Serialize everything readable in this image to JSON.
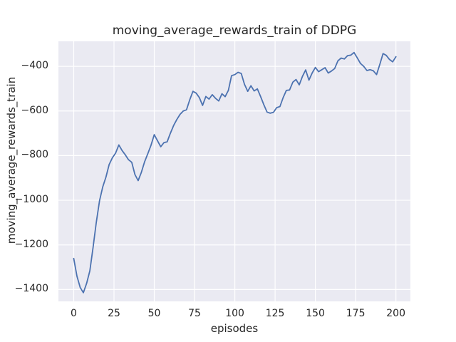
{
  "chart_data": {
    "type": "line",
    "title": "moving_average_rewards_train of DDPG",
    "xlabel": "episodes",
    "ylabel": "moving_average_rewards_train",
    "grid": true,
    "legend": "none",
    "background_color": "#eaeaf2",
    "grid_color": "#ffffff",
    "text_color": "#262626",
    "xticks": [
      0,
      25,
      50,
      75,
      100,
      125,
      150,
      175,
      200
    ],
    "yticks": [
      -400,
      -600,
      -800,
      -1000,
      -1200,
      -1400
    ],
    "xlim": [
      -9.5,
      209
    ],
    "ylim": [
      -1453,
      -288
    ],
    "series": [
      {
        "name": "moving_average_rewards_train",
        "color": "#4c72b0",
        "line_width": 1.8,
        "x": [
          0,
          2,
          4,
          6,
          8,
          10,
          12,
          14,
          16,
          18,
          20,
          22,
          24,
          26,
          28,
          30,
          32,
          34,
          36,
          38,
          40,
          42,
          44,
          46,
          48,
          50,
          52,
          54,
          56,
          58,
          60,
          62,
          64,
          66,
          68,
          70,
          72,
          74,
          76,
          78,
          80,
          82,
          84,
          86,
          88,
          90,
          92,
          94,
          96,
          98,
          100,
          102,
          104,
          106,
          108,
          110,
          112,
          114,
          116,
          118,
          120,
          122,
          124,
          126,
          128,
          130,
          132,
          134,
          136,
          138,
          140,
          142,
          144,
          146,
          148,
          150,
          152,
          154,
          156,
          158,
          160,
          162,
          164,
          166,
          168,
          170,
          172,
          174,
          176,
          178,
          180,
          182,
          184,
          186,
          188,
          190,
          192,
          194,
          196,
          198,
          200
        ],
        "values": [
          -1261,
          -1340,
          -1390,
          -1414,
          -1372,
          -1316,
          -1212,
          -1100,
          -1002,
          -940,
          -896,
          -840,
          -810,
          -788,
          -752,
          -777,
          -796,
          -818,
          -830,
          -885,
          -912,
          -875,
          -827,
          -791,
          -753,
          -706,
          -733,
          -760,
          -742,
          -738,
          -700,
          -665,
          -638,
          -615,
          -600,
          -595,
          -550,
          -512,
          -520,
          -540,
          -575,
          -535,
          -547,
          -527,
          -543,
          -555,
          -523,
          -536,
          -508,
          -442,
          -437,
          -427,
          -432,
          -480,
          -512,
          -487,
          -510,
          -501,
          -535,
          -572,
          -605,
          -610,
          -606,
          -585,
          -580,
          -540,
          -508,
          -506,
          -471,
          -459,
          -483,
          -445,
          -416,
          -462,
          -430,
          -405,
          -424,
          -415,
          -406,
          -430,
          -421,
          -410,
          -375,
          -363,
          -367,
          -352,
          -350,
          -338,
          -362,
          -387,
          -400,
          -419,
          -415,
          -420,
          -437,
          -392,
          -343,
          -351,
          -369,
          -380,
          -357
        ]
      }
    ]
  }
}
